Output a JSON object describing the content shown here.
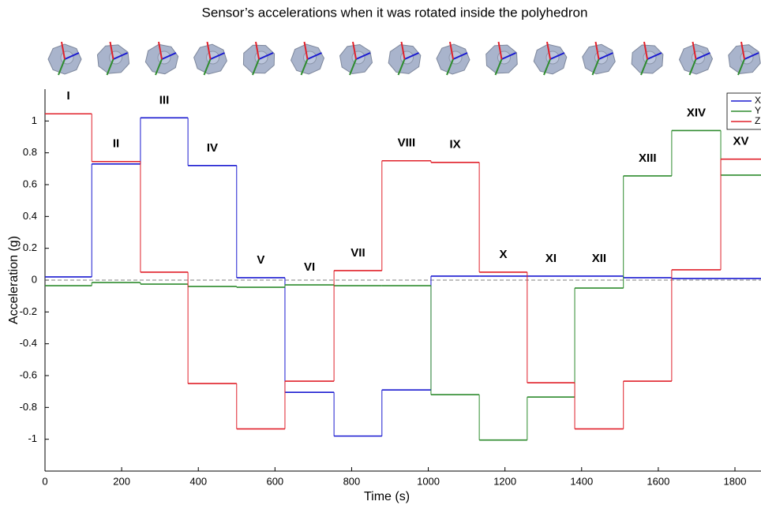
{
  "chart_data": {
    "type": "line",
    "step": "post",
    "title": "Sensor’s accelerations when it was rotated inside the polyhedron",
    "x_label": "Time (s)",
    "y_label": "Acceleration (g)",
    "x": [
      0,
      122,
      249,
      373,
      500,
      626,
      754,
      879,
      1007,
      1133,
      1258,
      1382,
      1509,
      1635,
      1763
    ],
    "segment_labels": [
      "I",
      "II",
      "III",
      "IV",
      "V",
      "VI",
      "VII",
      "VIII",
      "IX",
      "X",
      "XI",
      "XII",
      "XIII",
      "XIV",
      "XV"
    ],
    "series": [
      {
        "name": "X",
        "color": "#1a1ad0",
        "values": [
          0.02,
          0.73,
          1.02,
          0.72,
          0.015,
          -0.705,
          -0.98,
          -0.69,
          0.025,
          0.025,
          0.025,
          0.025,
          0.015,
          0.01,
          0.01
        ]
      },
      {
        "name": "Y",
        "color": "#2e8b2e",
        "values": [
          -0.035,
          -0.015,
          -0.025,
          -0.04,
          -0.045,
          -0.03,
          -0.035,
          -0.035,
          -0.72,
          -1.005,
          -0.735,
          -0.05,
          0.655,
          0.94,
          0.66
        ]
      },
      {
        "name": "Z",
        "color": "#e0202a",
        "values": [
          1.045,
          0.745,
          0.05,
          -0.65,
          -0.935,
          -0.635,
          0.06,
          0.75,
          0.74,
          0.05,
          -0.645,
          -0.935,
          -0.635,
          0.065,
          0.76
        ]
      }
    ],
    "hline": 0,
    "xlim": [
      0,
      1868
    ],
    "ylim": [
      -1.2,
      1.2
    ],
    "xticks": [
      0,
      200,
      400,
      600,
      800,
      1000,
      1200,
      1400,
      1600,
      1800
    ],
    "yticks": [
      -1,
      -0.8,
      -0.6,
      -0.4,
      -0.2,
      0,
      0.2,
      0.4,
      0.6,
      0.8,
      1
    ],
    "legend": "top-right"
  }
}
